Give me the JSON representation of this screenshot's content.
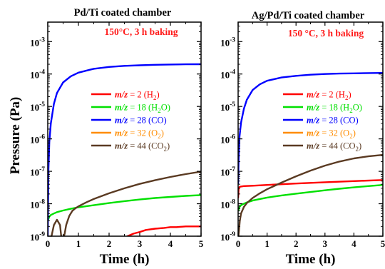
{
  "figure": {
    "ylabel": "Pressure (Pa)"
  },
  "chart_data": [
    {
      "type": "line",
      "title": "Pd/Ti coated chamber",
      "annotation": "150°C, 3 h baking",
      "xlabel": "Time (h)",
      "xlim": [
        0,
        5
      ],
      "ylim_log10": [
        -9,
        -2.4
      ],
      "y_scale": "log",
      "x_ticks": [
        "0",
        "1",
        "2",
        "3",
        "4",
        "5"
      ],
      "y_tick_exponents": [
        "-9",
        "-8",
        "-7",
        "-6",
        "-5",
        "-4",
        "-3"
      ],
      "legend_position": "center-right",
      "series": [
        {
          "prefix": "m/z",
          "value": " = 2 (H",
          "sub": "2",
          "close": ")",
          "color": "#ff0000",
          "x": [
            2.5,
            2.6,
            2.8,
            3.0,
            3.2,
            3.5,
            3.8,
            4.0,
            4.2,
            4.5,
            4.8,
            5.0
          ],
          "y": [
            6e-10,
            1e-09,
            1.2e-09,
            1.35e-09,
            1.55e-09,
            1.7e-09,
            1.8e-09,
            1.9e-09,
            1.9e-09,
            2e-09,
            2e-09,
            2e-09
          ]
        },
        {
          "prefix": "m/z",
          "value": " = 18 (H",
          "sub": "2",
          "close": "O)",
          "color": "#00e000",
          "x": [
            0,
            0.05,
            0.1,
            0.2,
            0.3,
            0.5,
            0.75,
            1.0,
            1.5,
            2.0,
            2.5,
            3.0,
            3.5,
            4.0,
            4.5,
            5.0
          ],
          "y": [
            3e-09,
            4e-09,
            4.5e-09,
            5e-09,
            5.5e-09,
            6.2e-09,
            7e-09,
            7.8e-09,
            9e-09,
            1.05e-08,
            1.2e-08,
            1.35e-08,
            1.5e-08,
            1.62e-08,
            1.75e-08,
            1.85e-08
          ]
        },
        {
          "prefix": "m/z",
          "value": " = 28 (CO)",
          "sub": "",
          "close": "",
          "color": "#0000ff",
          "x": [
            0,
            0.02,
            0.05,
            0.1,
            0.2,
            0.3,
            0.5,
            0.75,
            1.0,
            1.5,
            2.0,
            2.5,
            3.0,
            3.5,
            4.0,
            4.5,
            5.0
          ],
          "y": [
            1e-09,
            1e-07,
            8e-07,
            3e-06,
            1.2e-05,
            2.6e-05,
            5.5e-05,
            8.5e-05,
            0.00011,
            0.000145,
            0.000165,
            0.000178,
            0.000186,
            0.000192,
            0.000196,
            0.000199,
            0.0002
          ]
        },
        {
          "prefix": "m/z",
          "value": " = 32 (O",
          "sub": "2",
          "close": ")",
          "color": "#ff8c00",
          "x": [],
          "y": []
        },
        {
          "prefix": "m/z",
          "value": " = 44 (CO",
          "sub": "2",
          "close": ")",
          "color": "#5a3a22",
          "x": [
            0.1,
            0.2,
            0.3,
            0.4,
            0.45,
            0.5,
            0.55,
            0.6,
            0.7,
            0.8,
            0.9,
            1.0,
            1.25,
            1.5,
            2.0,
            2.5,
            3.0,
            3.5,
            4.0,
            4.5,
            5.0
          ],
          "y": [
            8e-10,
            2.2e-09,
            3.2e-09,
            2.2e-09,
            8e-10,
            8e-10,
            1.2e-09,
            2.2e-09,
            4.2e-09,
            6e-09,
            7.2e-09,
            8.3e-09,
            1.1e-08,
            1.4e-08,
            2.1e-08,
            3e-08,
            4.1e-08,
            5.3e-08,
            6.7e-08,
            8.2e-08,
            9.8e-08
          ]
        }
      ]
    },
    {
      "type": "line",
      "title": "Ag/Pd/Ti coated chamber",
      "annotation": "150 °C, 3 h baking",
      "xlabel": "Time (h)",
      "xlim": [
        0,
        5
      ],
      "ylim_log10": [
        -9,
        -2.4
      ],
      "y_scale": "log",
      "x_ticks": [
        "0",
        "1",
        "2",
        "3",
        "4",
        "5"
      ],
      "y_tick_exponents": [
        "-9",
        "-8",
        "-7",
        "-6",
        "-5",
        "-4",
        "-3"
      ],
      "legend_position": "center-right",
      "series": [
        {
          "prefix": "m/z",
          "value": " = 2 (H",
          "sub": "2",
          "close": ")",
          "color": "#ff0000",
          "x": [
            0,
            0.02,
            0.05,
            0.1,
            0.2,
            0.5,
            1.0,
            2.0,
            3.0,
            4.0,
            5.0
          ],
          "y": [
            1.5e-08,
            3e-08,
            3.3e-08,
            3.4e-08,
            3.5e-08,
            3.6e-08,
            3.8e-08,
            4.2e-08,
            4.6e-08,
            5e-08,
            5.4e-08
          ]
        },
        {
          "prefix": "m/z",
          "value": " = 18 (H",
          "sub": "2",
          "close": "O)",
          "color": "#00e000",
          "x": [
            0,
            0.05,
            0.1,
            0.2,
            0.3,
            0.5,
            0.75,
            1.0,
            1.5,
            2.0,
            2.5,
            3.0,
            3.5,
            4.0,
            4.5,
            5.0
          ],
          "y": [
            6e-09,
            8e-09,
            9e-09,
            1e-08,
            1.1e-08,
            1.25e-08,
            1.4e-08,
            1.55e-08,
            1.8e-08,
            2.05e-08,
            2.3e-08,
            2.6e-08,
            2.9e-08,
            3.2e-08,
            3.5e-08,
            3.8e-08
          ]
        },
        {
          "prefix": "m/z",
          "value": " = 28 (CO)",
          "sub": "",
          "close": "",
          "color": "#0000ff",
          "x": [
            0,
            0.02,
            0.05,
            0.1,
            0.2,
            0.3,
            0.5,
            0.75,
            1.0,
            1.5,
            2.0,
            2.5,
            3.0,
            3.5,
            4.0,
            4.5,
            5.0
          ],
          "y": [
            4e-08,
            3e-07,
            1.2e-06,
            3.2e-06,
            8.5e-06,
            1.6e-05,
            3.2e-05,
            4.8e-05,
            6.2e-05,
            7.8e-05,
            8.8e-05,
            9.5e-05,
            0.0001,
            0.000103,
            0.000105,
            0.000107,
            0.000108
          ]
        },
        {
          "prefix": "m/z",
          "value": " = 32 (O",
          "sub": "2",
          "close": ")",
          "color": "#ff8c00",
          "x": [],
          "y": []
        },
        {
          "prefix": "m/z",
          "value": " = 44 (CO",
          "sub": "2",
          "close": ")",
          "color": "#5a3a22",
          "x": [
            0,
            0.03,
            0.06,
            0.1,
            0.2,
            0.3,
            0.5,
            0.75,
            1.0,
            1.5,
            2.0,
            2.5,
            3.0,
            3.5,
            4.0,
            4.5,
            5.0
          ],
          "y": [
            8e-10,
            1.5e-09,
            3e-09,
            5e-09,
            8e-09,
            1.05e-08,
            1.5e-08,
            2.1e-08,
            2.8e-08,
            4.5e-08,
            7e-08,
            1.05e-07,
            1.5e-07,
            2e-07,
            2.5e-07,
            2.9e-07,
            3.2e-07
          ]
        }
      ]
    }
  ]
}
